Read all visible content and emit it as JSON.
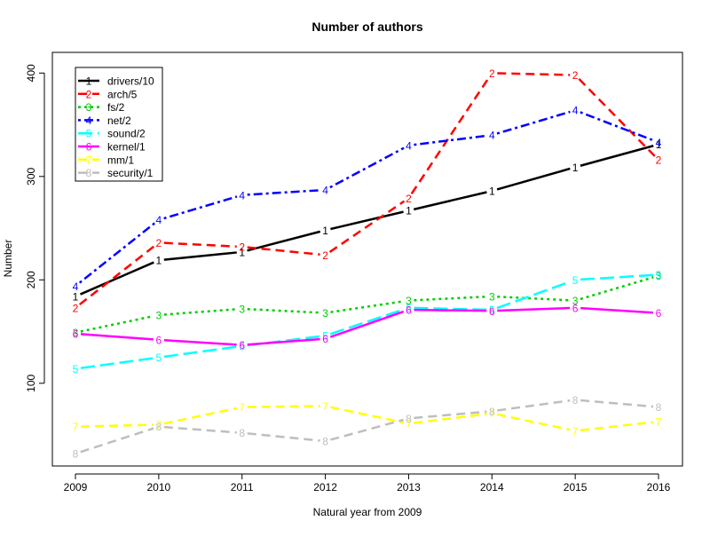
{
  "chart_data": {
    "type": "line",
    "title": "Number of authors",
    "xlabel": "Natural year from 2009",
    "ylabel": "Number",
    "x": [
      2009,
      2010,
      2011,
      2012,
      2013,
      2014,
      2015,
      2016
    ],
    "xlim": [
      2009,
      2016
    ],
    "ylim": [
      20,
      420
    ],
    "yticks": [
      100,
      200,
      300,
      400
    ],
    "grid": false,
    "legend_position": "top-left",
    "series": [
      {
        "name": "drivers/10",
        "marker": "1",
        "color": "#000000",
        "dash": "solid",
        "values": [
          184,
          219,
          227,
          248,
          267,
          286,
          309,
          331
        ]
      },
      {
        "name": "arch/5",
        "marker": "2",
        "color": "#ff0000",
        "dash": "dashed",
        "values": [
          173,
          236,
          232,
          224,
          279,
          400,
          398,
          316
        ]
      },
      {
        "name": "fs/2",
        "marker": "3",
        "color": "#00cd00",
        "dash": "dotted",
        "values": [
          149,
          166,
          172,
          168,
          180,
          184,
          180,
          204
        ]
      },
      {
        "name": "net/2",
        "marker": "4",
        "color": "#0000ff",
        "dash": "dotdash",
        "values": [
          194,
          258,
          282,
          287,
          330,
          340,
          364,
          333
        ]
      },
      {
        "name": "sound/2",
        "marker": "5",
        "color": "#00ffff",
        "dash": "longdash",
        "values": [
          114,
          125,
          136,
          146,
          173,
          171,
          200,
          205
        ]
      },
      {
        "name": "kernel/1",
        "marker": "6",
        "color": "#ff00ff",
        "dash": "solid",
        "values": [
          148,
          142,
          137,
          143,
          171,
          170,
          173,
          168
        ]
      },
      {
        "name": "mm/1",
        "marker": "7",
        "color": "#ffff00",
        "dash": "dashed",
        "values": [
          58,
          60,
          77,
          78,
          61,
          71,
          54,
          63
        ]
      },
      {
        "name": "security/1",
        "marker": "8",
        "color": "#bebebe",
        "dash": "dashed",
        "values": [
          32,
          58,
          52,
          44,
          66,
          73,
          84,
          77
        ]
      }
    ]
  }
}
